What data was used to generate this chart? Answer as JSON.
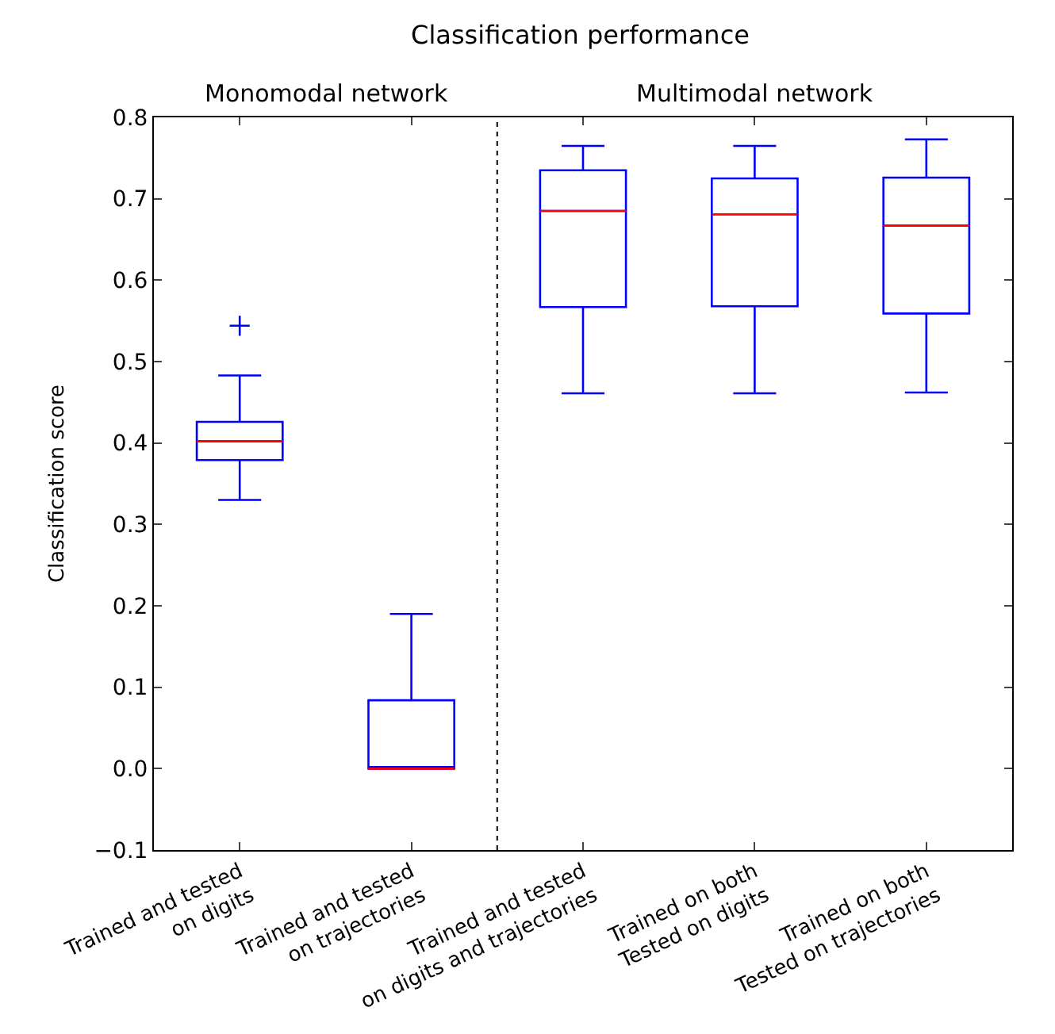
{
  "chart_data": {
    "type": "box",
    "title": "Classification performance",
    "ylabel": "Classification score",
    "annotations": [
      "Monomodal network",
      "Multimodal network"
    ],
    "categories": [
      "Trained and tested\non digits",
      "Trained and tested\non trajectories",
      "Trained and tested\non digits and trajectories",
      "Trained on both\nTested on digits",
      "Trained on both\nTested on trajectories"
    ],
    "series": [
      {
        "color": "#0000ff",
        "boxes": [
          {
            "low": 0.33,
            "q1": 0.379,
            "median": 0.402,
            "q3": 0.426,
            "high": 0.483,
            "outliers": [
              0.544
            ]
          },
          {
            "low": 0.0,
            "q1": 0.0,
            "median": 0.0,
            "q3": 0.084,
            "high": 0.19
          },
          {
            "low": 0.461,
            "q1": 0.567,
            "median": 0.685,
            "q3": 0.735,
            "high": 0.765
          },
          {
            "low": 0.461,
            "q1": 0.568,
            "median": 0.681,
            "q3": 0.725,
            "high": 0.765
          },
          {
            "low": 0.462,
            "q1": 0.559,
            "median": 0.667,
            "q3": 0.726,
            "high": 0.773
          }
        ]
      }
    ],
    "ylim": [
      -0.1,
      0.8
    ],
    "yticks": [
      {
        "value": -0.1,
        "label": "−0.1"
      },
      "0.0",
      0.1,
      0.2,
      0.3,
      0.4,
      0.5,
      0.6,
      0.7,
      0.8
    ],
    "tick_labels": [
      "x",
      "y"
    ]
  }
}
